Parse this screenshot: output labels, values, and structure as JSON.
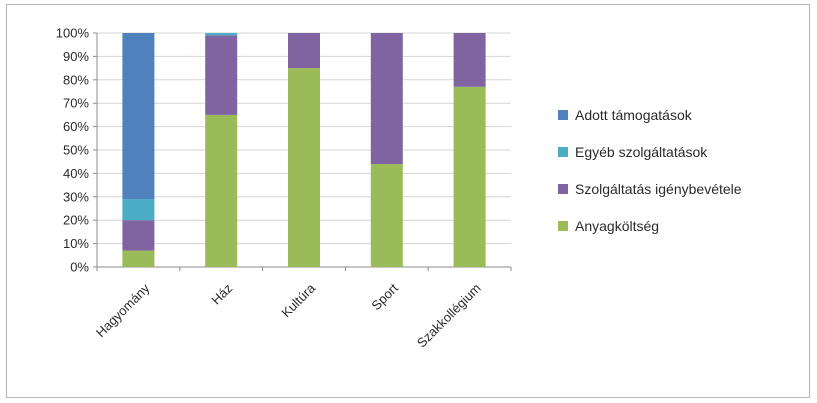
{
  "chart_data": {
    "type": "bar",
    "stacked": "percent",
    "categories": [
      "Hagyomány",
      "Ház",
      "Kultúra",
      "Sport",
      "Szakkollégium"
    ],
    "series": [
      {
        "name": "Anyagköltség",
        "color": "#9bbb59",
        "values": [
          7,
          65,
          85,
          44,
          77
        ]
      },
      {
        "name": "Szolgáltatás igénybevétele",
        "color": "#8064a2",
        "values": [
          13,
          34,
          15,
          56,
          23
        ]
      },
      {
        "name": "Egyéb szolgáltatások",
        "color": "#4bacc6",
        "values": [
          9,
          1,
          0,
          0,
          0
        ]
      },
      {
        "name": "Adott támogatások",
        "color": "#4f81bd",
        "values": [
          71,
          0,
          0,
          0,
          0
        ]
      }
    ],
    "legend_order": [
      "Adott támogatások",
      "Egyéb szolgáltatások",
      "Szolgáltatás igénybevétele",
      "Anyagköltség"
    ],
    "y_ticks": [
      "0%",
      "10%",
      "20%",
      "30%",
      "40%",
      "50%",
      "60%",
      "70%",
      "80%",
      "90%",
      "100%"
    ],
    "ylim": [
      0,
      100
    ],
    "grid": true,
    "legend_position": "right"
  }
}
